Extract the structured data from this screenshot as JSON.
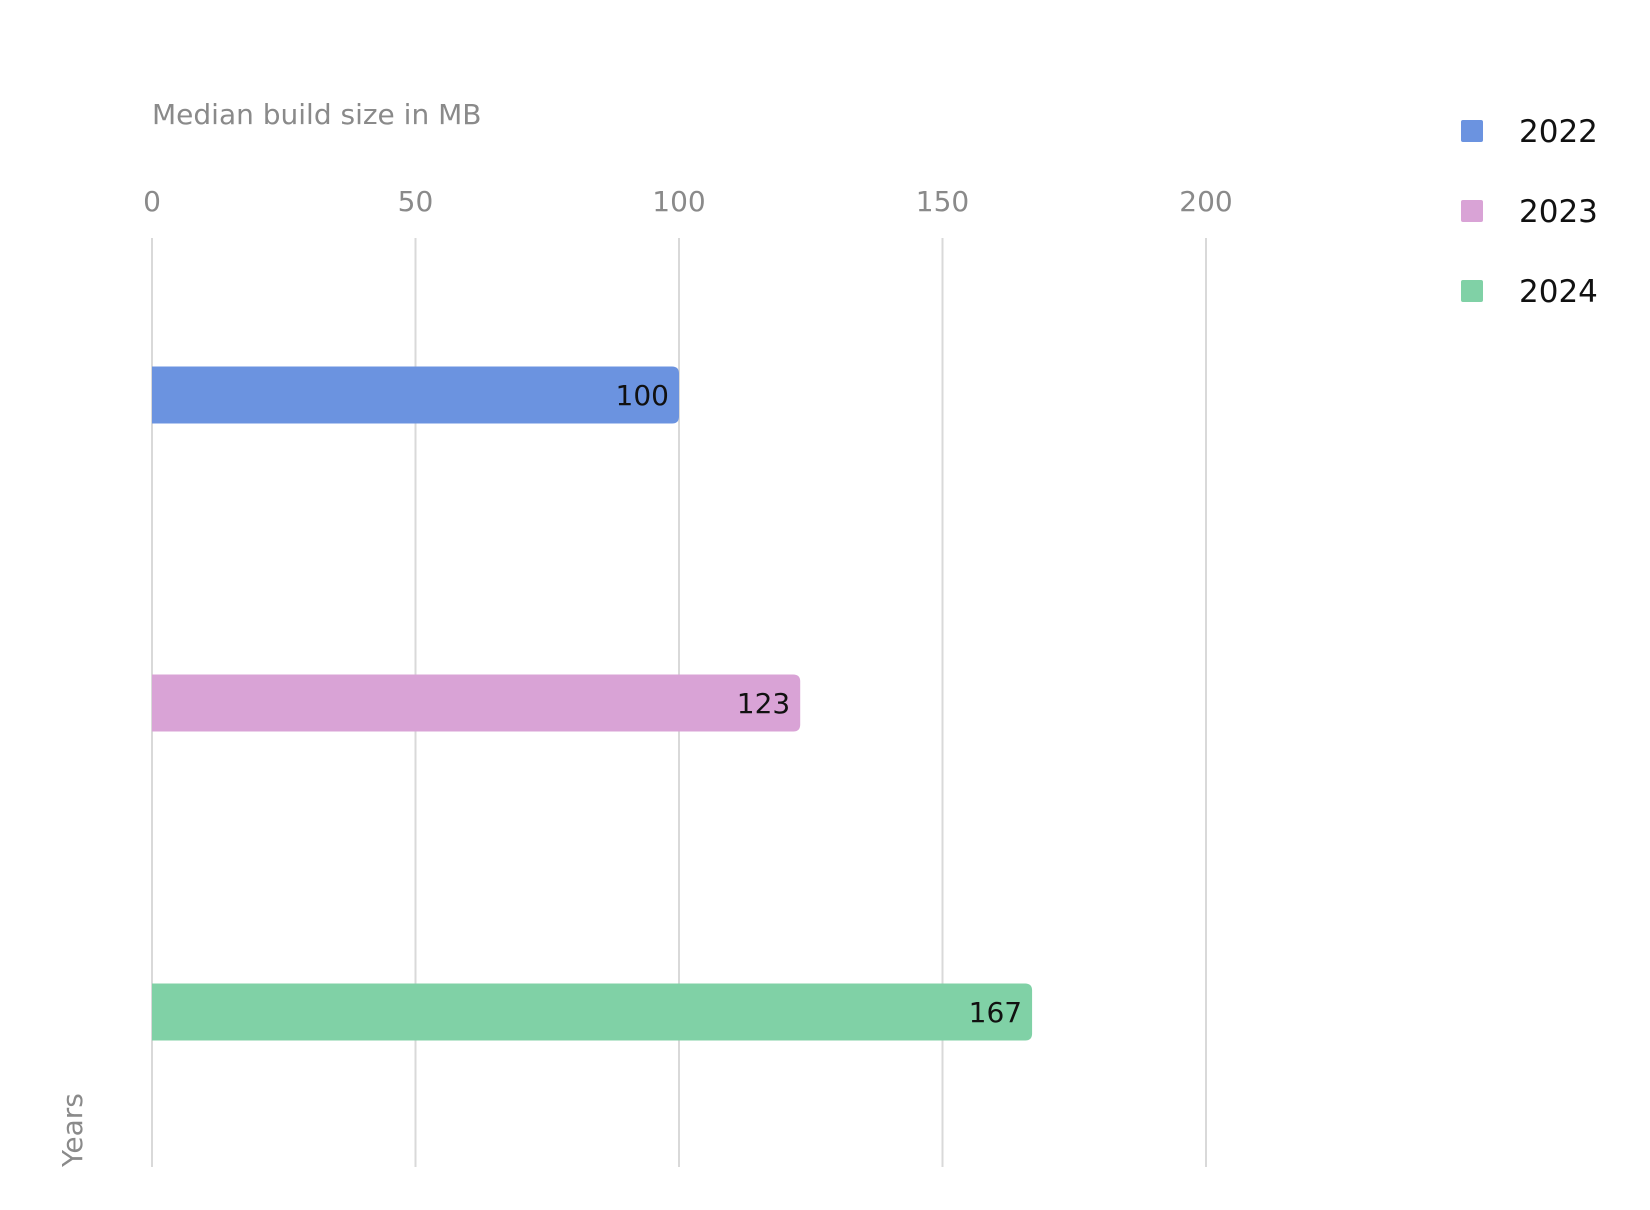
{
  "chart_data": {
    "type": "bar",
    "orientation": "horizontal",
    "xlabel": "Median build size in MB",
    "ylabel": "Years",
    "xlim": [
      0,
      200
    ],
    "xticks": [
      0,
      50,
      100,
      150,
      200
    ],
    "grid": true,
    "legend_position": "top-right",
    "categories": [
      "2022",
      "2023",
      "2024"
    ],
    "values": [
      100,
      123,
      167
    ],
    "data_labels": [
      "100",
      "123",
      "167"
    ],
    "colors": [
      "#6b93e0",
      "#d9a3d6",
      "#80d1a6"
    ],
    "legend": [
      {
        "label": "2022",
        "color": "#6b93e0"
      },
      {
        "label": "2023",
        "color": "#d9a3d6"
      },
      {
        "label": "2024",
        "color": "#80d1a6"
      }
    ]
  }
}
